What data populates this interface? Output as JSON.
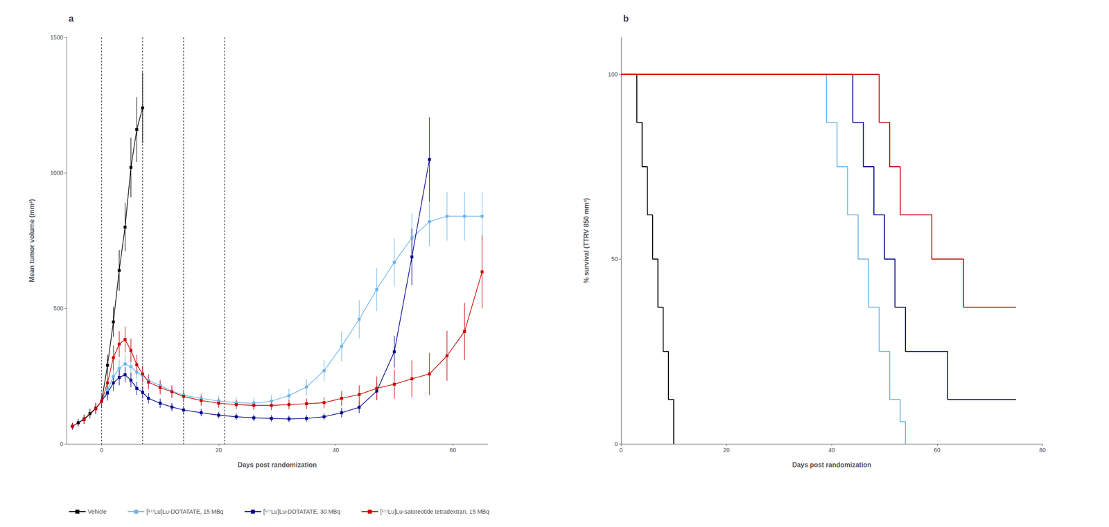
{
  "chart_data": [
    {
      "type": "line",
      "title": "a",
      "xlabel": "Days post randomization",
      "ylabel": "Mean tumor volume (mm³)",
      "xlim": [
        -6,
        66
      ],
      "ylim": [
        0,
        1500
      ],
      "xticks": [
        0,
        20,
        40,
        60
      ],
      "yticks": [
        0,
        500,
        1000,
        1500
      ],
      "grid": false,
      "legend": "lower left",
      "marker": "square",
      "vlines": [
        0,
        7,
        14,
        21
      ],
      "series": [
        {
          "name": "Vehicle",
          "color": "#000000",
          "x": [
            -5,
            -4,
            -3,
            -2,
            -1,
            0,
            1,
            2,
            3,
            4,
            5,
            6,
            7
          ],
          "values": [
            65,
            78,
            92,
            112,
            132,
            158,
            290,
            450,
            640,
            800,
            1020,
            1160,
            1240
          ],
          "yerr_lo": [
            12,
            14,
            16,
            18,
            20,
            25,
            40,
            55,
            75,
            90,
            110,
            120,
            130
          ],
          "yerr_hi": [
            12,
            14,
            16,
            18,
            20,
            25,
            40,
            55,
            75,
            90,
            110,
            120,
            130
          ]
        },
        {
          "name": "[¹⁷⁷Lu]Lu-DOTATATE, 15 MBq",
          "color": "#6EB4E8",
          "x": [
            -5,
            -3,
            -1,
            0,
            1,
            2,
            3,
            4,
            5,
            6,
            7,
            8,
            10,
            12,
            14,
            17,
            20,
            23,
            26,
            29,
            32,
            35,
            38,
            41,
            44,
            47,
            50,
            53,
            56,
            59,
            62,
            65
          ],
          "values": [
            65,
            90,
            130,
            158,
            200,
            248,
            278,
            295,
            285,
            265,
            252,
            235,
            215,
            195,
            180,
            168,
            158,
            152,
            150,
            158,
            178,
            210,
            270,
            360,
            460,
            570,
            670,
            760,
            820,
            840,
            840,
            840
          ],
          "yerr_lo": [
            12,
            16,
            20,
            25,
            30,
            34,
            34,
            34,
            30,
            27,
            27,
            24,
            24,
            22,
            22,
            20,
            20,
            20,
            20,
            22,
            25,
            30,
            40,
            55,
            70,
            80,
            88,
            90,
            90,
            90,
            90,
            90
          ],
          "yerr_hi": [
            12,
            16,
            20,
            25,
            30,
            34,
            34,
            34,
            30,
            27,
            27,
            24,
            24,
            22,
            22,
            20,
            20,
            20,
            20,
            22,
            25,
            30,
            40,
            55,
            70,
            80,
            88,
            90,
            90,
            90,
            90,
            90
          ]
        },
        {
          "name": "[¹⁷⁷Lu]Lu-DOTATATE, 30 MBq",
          "color": "#00008B",
          "x": [
            -5,
            -3,
            -1,
            0,
            1,
            2,
            3,
            4,
            5,
            6,
            7,
            8,
            10,
            12,
            14,
            17,
            20,
            23,
            26,
            29,
            32,
            35,
            38,
            41,
            44,
            47,
            50,
            53,
            56
          ],
          "values": [
            65,
            90,
            130,
            158,
            188,
            225,
            245,
            255,
            235,
            205,
            190,
            168,
            150,
            136,
            125,
            115,
            106,
            100,
            96,
            94,
            92,
            94,
            100,
            115,
            135,
            195,
            340,
            690,
            1050
          ],
          "yerr_lo": [
            12,
            16,
            20,
            25,
            28,
            29,
            29,
            28,
            26,
            24,
            22,
            19,
            17,
            15,
            14,
            13,
            12,
            12,
            12,
            12,
            12,
            12,
            13,
            17,
            22,
            34,
            58,
            105,
            155
          ],
          "yerr_hi": [
            12,
            16,
            20,
            25,
            28,
            29,
            29,
            28,
            26,
            24,
            22,
            19,
            17,
            15,
            14,
            13,
            12,
            12,
            12,
            12,
            12,
            12,
            13,
            17,
            22,
            34,
            58,
            105,
            155
          ]
        },
        {
          "name": "[¹⁷⁷Lu]Lu-satoreotide tetradextran, 15 MBq",
          "color": "#CC0000",
          "x": [
            -5,
            -3,
            -1,
            0,
            1,
            2,
            3,
            4,
            5,
            6,
            7,
            8,
            10,
            12,
            14,
            17,
            20,
            23,
            26,
            29,
            32,
            35,
            38,
            41,
            44,
            47,
            50,
            53,
            56,
            59,
            62,
            65
          ],
          "values": [
            65,
            90,
            130,
            158,
            225,
            318,
            368,
            385,
            345,
            292,
            258,
            228,
            208,
            192,
            175,
            160,
            150,
            145,
            142,
            142,
            145,
            148,
            152,
            168,
            182,
            205,
            220,
            240,
            258,
            325,
            415,
            635
          ],
          "yerr_lo": [
            12,
            16,
            20,
            25,
            35,
            45,
            48,
            48,
            43,
            37,
            31,
            27,
            25,
            23,
            21,
            19,
            17,
            17,
            17,
            17,
            17,
            19,
            21,
            27,
            34,
            44,
            53,
            68,
            78,
            92,
            105,
            135
          ],
          "yerr_hi": [
            12,
            16,
            20,
            25,
            35,
            45,
            48,
            48,
            43,
            37,
            31,
            27,
            25,
            23,
            21,
            19,
            17,
            17,
            17,
            17,
            17,
            19,
            21,
            27,
            34,
            44,
            53,
            68,
            78,
            92,
            105,
            135
          ]
        }
      ]
    },
    {
      "type": "step",
      "title": "b",
      "xlabel": "Days post randomization",
      "ylabel": "% survival (TTRV 850 mm³)",
      "xlim": [
        0,
        80
      ],
      "ylim": [
        0,
        110
      ],
      "xticks": [
        0,
        20,
        40,
        60,
        80
      ],
      "yticks": [
        0,
        50,
        100
      ],
      "grid": false,
      "series": [
        {
          "name": "Vehicle",
          "color": "#000000",
          "x": [
            0,
            2,
            3,
            4,
            5,
            6,
            7,
            8,
            9,
            10
          ],
          "values": [
            100,
            100,
            87,
            75,
            62,
            50,
            37,
            25,
            12,
            0
          ]
        },
        {
          "name": "[¹⁷⁷Lu]Lu-DOTATATE, 15 MBq",
          "color": "#6EB4E8",
          "x": [
            0,
            37,
            39,
            41,
            43,
            45,
            47,
            49,
            51,
            53,
            54
          ],
          "values": [
            100,
            100,
            87,
            75,
            62,
            50,
            37,
            25,
            12,
            6,
            0
          ]
        },
        {
          "name": "[¹⁷⁷Lu]Lu-DOTATATE, 30 MBq",
          "color": "#00008B",
          "x": [
            0,
            42,
            44,
            46,
            48,
            50,
            52,
            54,
            56,
            60,
            62,
            75
          ],
          "values": [
            100,
            100,
            87,
            75,
            62,
            50,
            37,
            25,
            25,
            25,
            12,
            12
          ]
        },
        {
          "name": "[¹⁷⁷Lu]Lu-satoreotide tetradextran, 15 MBq",
          "color": "#CC0000",
          "x": [
            0,
            47,
            49,
            51,
            53,
            57,
            59,
            63,
            65,
            67,
            69,
            75
          ],
          "values": [
            100,
            100,
            87,
            75,
            62,
            62,
            50,
            50,
            37,
            37,
            37,
            37
          ]
        }
      ]
    }
  ]
}
